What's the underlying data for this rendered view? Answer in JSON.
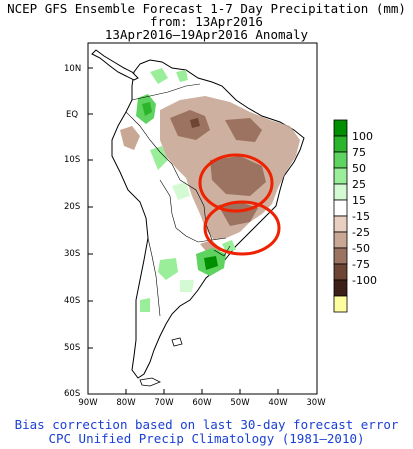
{
  "title": {
    "line1": "NCEP GFS Ensemble Forecast 1-7 Day Precipitation (mm)",
    "line2": "from: 13Apr2016",
    "line3": "13Apr2016–19Apr2016 Anomaly"
  },
  "map": {
    "lat_labels": [
      "10N",
      "EQ",
      "10S",
      "20S",
      "30S",
      "40S",
      "50S",
      "60S"
    ],
    "lon_labels": [
      "90W",
      "80W",
      "70W",
      "60W",
      "50W",
      "40W",
      "30W"
    ],
    "extent": {
      "lon": [
        -90,
        -30
      ],
      "lat": [
        -60,
        15
      ]
    }
  },
  "legend": {
    "labels": [
      "100",
      "75",
      "50",
      "25",
      "15",
      "-15",
      "-25",
      "-50",
      "-75",
      "-100"
    ],
    "colors": [
      "#008f00",
      "#2bb52b",
      "#5fd35f",
      "#9aee9a",
      "#d4fad4",
      "#ffffff",
      "#e8cfc2",
      "#c8a795",
      "#9c7260",
      "#6e4435",
      "#3c1f16",
      "#fefea0"
    ]
  },
  "annotations": {
    "circle_color": "#ee2200"
  },
  "footer": {
    "line1": "Bias correction based on last 30-day forecast error",
    "line2": "CPC Unified Precip Climatology (1981–2010)"
  }
}
